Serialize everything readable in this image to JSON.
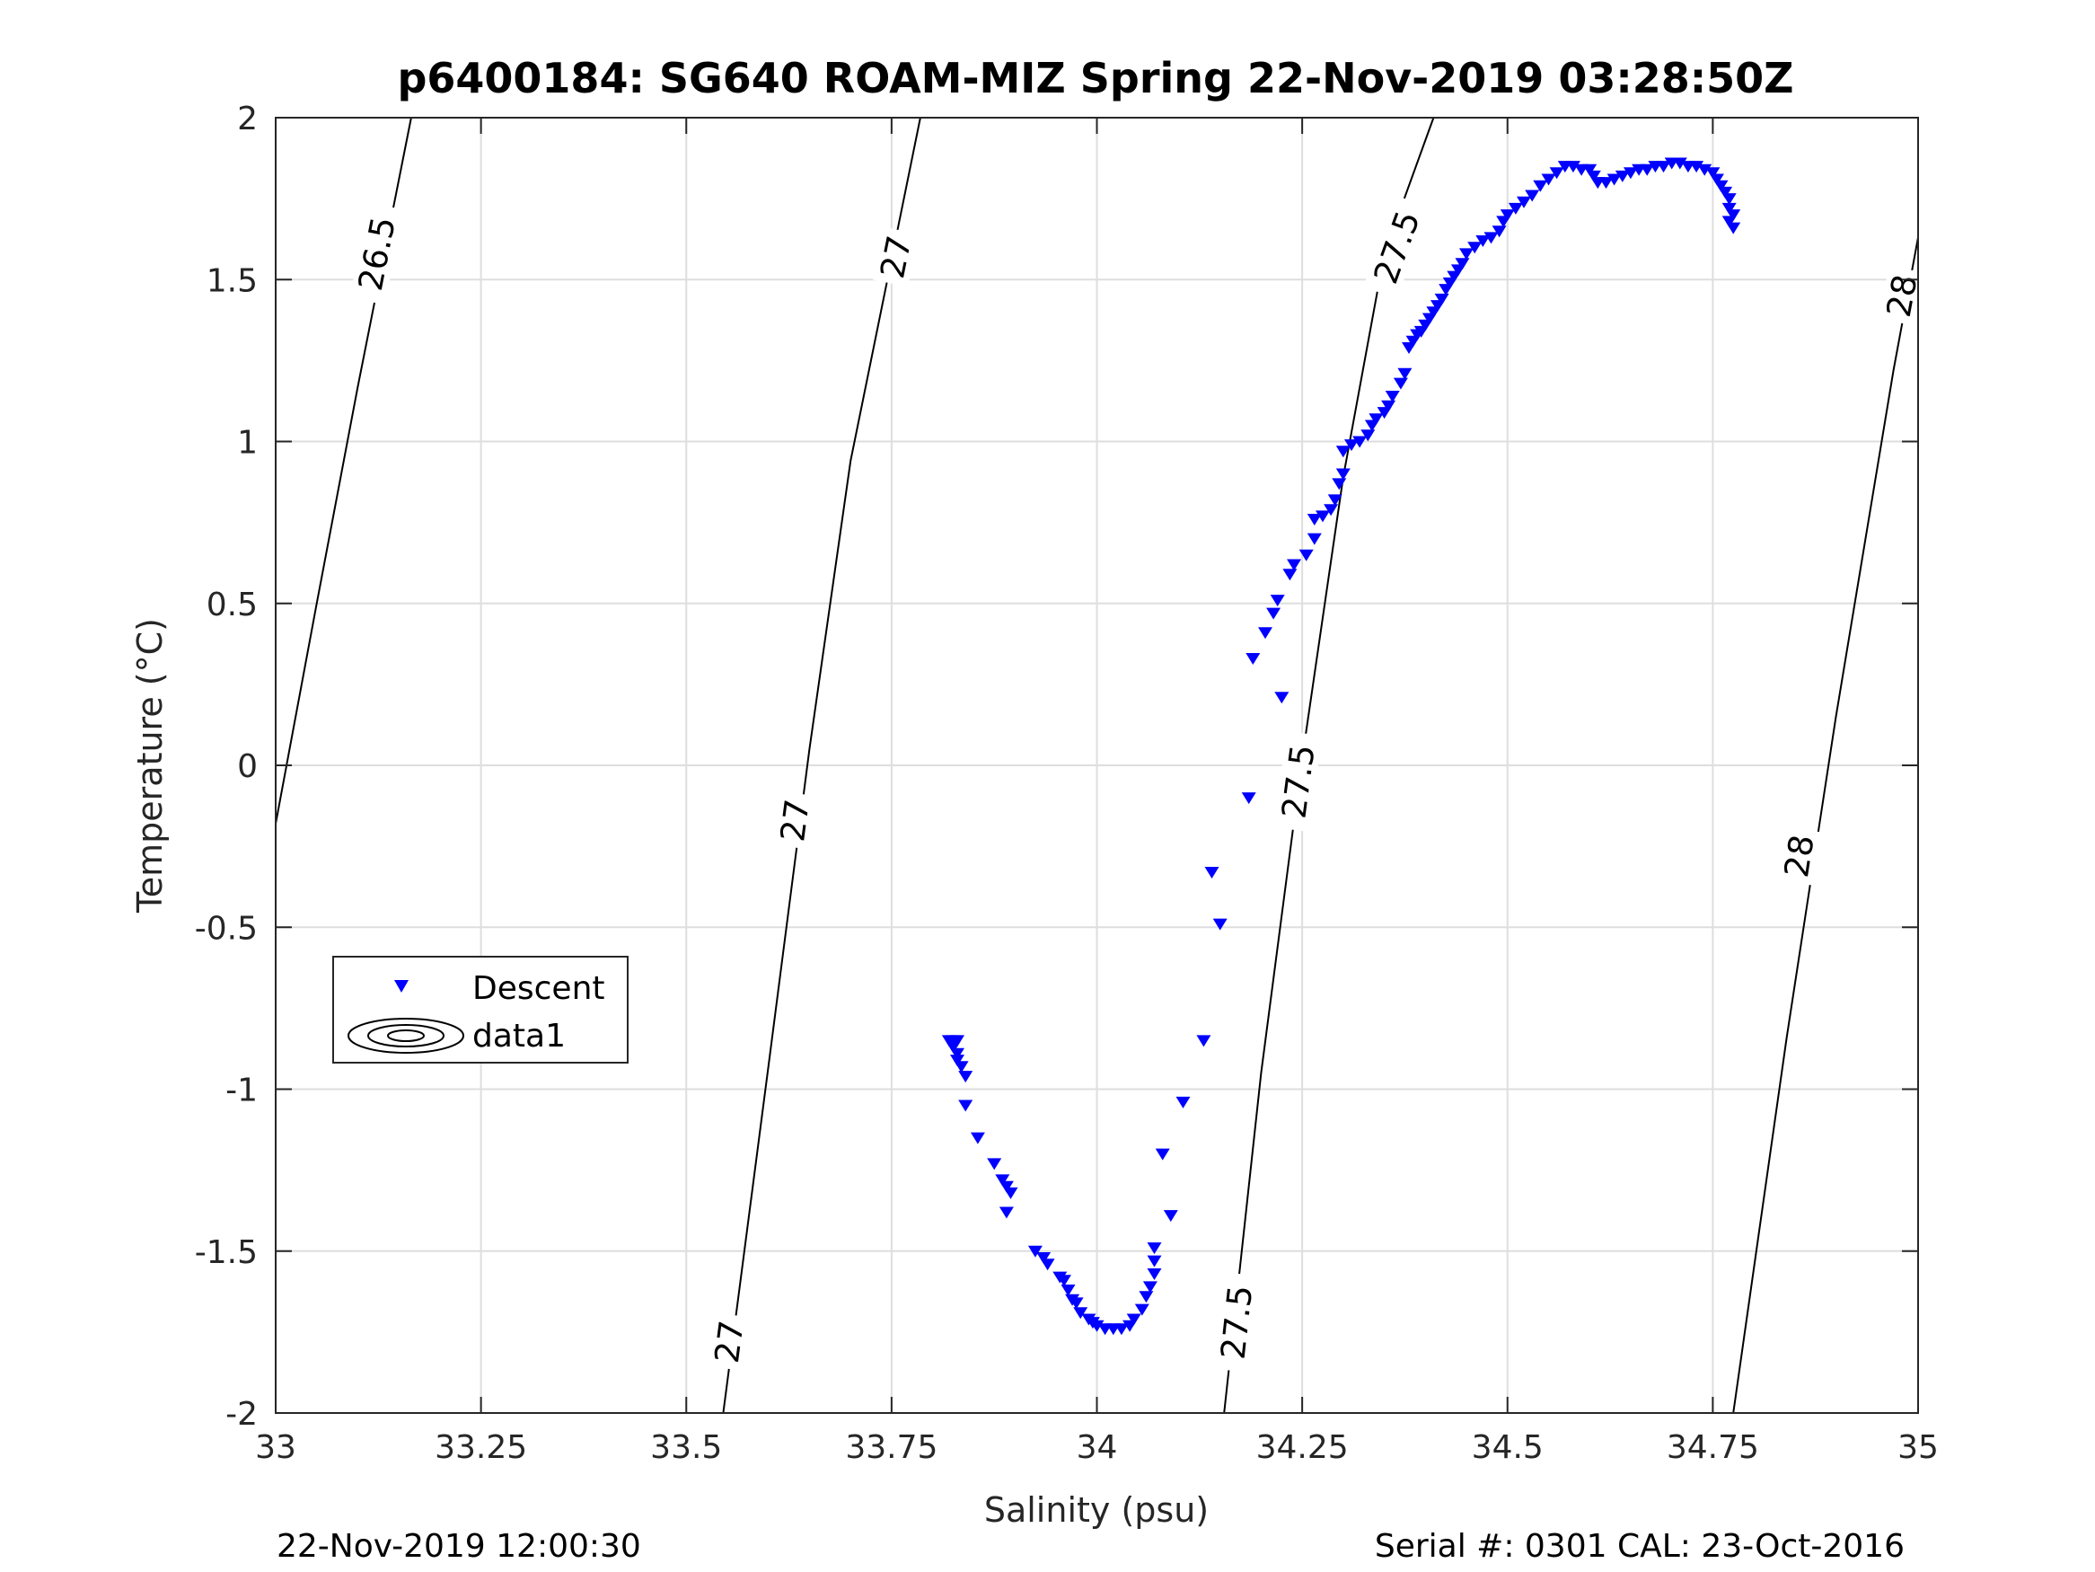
{
  "chart_data": {
    "type": "scatter",
    "title": "p6400184: SG640 ROAM-MIZ Spring 22-Nov-2019 03:28:50Z",
    "xlabel": "Salinity (psu)",
    "ylabel": "Temperature (°C)",
    "xlim": [
      33,
      35
    ],
    "ylim": [
      -2,
      2
    ],
    "xticks": [
      "33",
      "33.25",
      "33.5",
      "33.75",
      "34",
      "34.25",
      "34.5",
      "34.75",
      "35"
    ],
    "yticks": [
      "-2",
      "-1.5",
      "-1",
      "-0.5",
      "0",
      "0.5",
      "1",
      "1.5",
      "2"
    ],
    "grid": true,
    "legend_placement": "lower-left",
    "legend": [
      "Descent",
      "data1"
    ],
    "series": [
      {
        "name": "Descent",
        "marker": "triangle-down",
        "color": "#0000ff",
        "points": [
          [
            33.82,
            -0.85
          ],
          [
            33.825,
            -0.85
          ],
          [
            33.83,
            -0.85
          ],
          [
            33.825,
            -0.87
          ],
          [
            33.83,
            -0.89
          ],
          [
            33.83,
            -0.91
          ],
          [
            33.835,
            -0.93
          ],
          [
            33.84,
            -0.96
          ],
          [
            33.84,
            -1.05
          ],
          [
            33.855,
            -1.15
          ],
          [
            33.875,
            -1.23
          ],
          [
            33.885,
            -1.28
          ],
          [
            33.89,
            -1.3
          ],
          [
            33.895,
            -1.32
          ],
          [
            33.89,
            -1.38
          ],
          [
            33.925,
            -1.5
          ],
          [
            33.935,
            -1.52
          ],
          [
            33.94,
            -1.54
          ],
          [
            33.955,
            -1.58
          ],
          [
            33.96,
            -1.59
          ],
          [
            33.965,
            -1.62
          ],
          [
            33.97,
            -1.65
          ],
          [
            33.975,
            -1.66
          ],
          [
            33.98,
            -1.69
          ],
          [
            33.99,
            -1.71
          ],
          [
            33.995,
            -1.72
          ],
          [
            34.0,
            -1.73
          ],
          [
            34.01,
            -1.74
          ],
          [
            34.02,
            -1.74
          ],
          [
            34.03,
            -1.74
          ],
          [
            34.04,
            -1.73
          ],
          [
            34.045,
            -1.71
          ],
          [
            34.055,
            -1.68
          ],
          [
            34.06,
            -1.64
          ],
          [
            34.065,
            -1.61
          ],
          [
            34.07,
            -1.57
          ],
          [
            34.07,
            -1.53
          ],
          [
            34.07,
            -1.49
          ],
          [
            34.09,
            -1.39
          ],
          [
            34.08,
            -1.2
          ],
          [
            34.105,
            -1.04
          ],
          [
            34.13,
            -0.85
          ],
          [
            34.15,
            -0.49
          ],
          [
            34.14,
            -0.33
          ],
          [
            34.185,
            -0.1
          ],
          [
            34.19,
            0.33
          ],
          [
            34.205,
            0.41
          ],
          [
            34.215,
            0.47
          ],
          [
            34.22,
            0.51
          ],
          [
            34.225,
            0.21
          ],
          [
            34.235,
            0.59
          ],
          [
            34.24,
            0.62
          ],
          [
            34.255,
            0.65
          ],
          [
            34.265,
            0.7
          ],
          [
            34.265,
            0.76
          ],
          [
            34.275,
            0.77
          ],
          [
            34.285,
            0.79
          ],
          [
            34.29,
            0.82
          ],
          [
            34.295,
            0.87
          ],
          [
            34.3,
            0.9
          ],
          [
            34.3,
            0.97
          ],
          [
            34.31,
            0.99
          ],
          [
            34.32,
            1.0
          ],
          [
            34.33,
            1.02
          ],
          [
            34.335,
            1.05
          ],
          [
            34.34,
            1.07
          ],
          [
            34.35,
            1.09
          ],
          [
            34.355,
            1.11
          ],
          [
            34.36,
            1.14
          ],
          [
            34.37,
            1.18
          ],
          [
            34.375,
            1.21
          ],
          [
            34.38,
            1.29
          ],
          [
            34.385,
            1.31
          ],
          [
            34.39,
            1.33
          ],
          [
            34.395,
            1.34
          ],
          [
            34.4,
            1.36
          ],
          [
            34.405,
            1.38
          ],
          [
            34.41,
            1.4
          ],
          [
            34.415,
            1.42
          ],
          [
            34.42,
            1.44
          ],
          [
            34.425,
            1.47
          ],
          [
            34.43,
            1.49
          ],
          [
            34.435,
            1.51
          ],
          [
            34.44,
            1.53
          ],
          [
            34.445,
            1.55
          ],
          [
            34.45,
            1.58
          ],
          [
            34.46,
            1.6
          ],
          [
            34.47,
            1.62
          ],
          [
            34.48,
            1.63
          ],
          [
            34.49,
            1.65
          ],
          [
            34.495,
            1.68
          ],
          [
            34.5,
            1.7
          ],
          [
            34.51,
            1.72
          ],
          [
            34.52,
            1.74
          ],
          [
            34.53,
            1.76
          ],
          [
            34.54,
            1.79
          ],
          [
            34.55,
            1.81
          ],
          [
            34.56,
            1.83
          ],
          [
            34.57,
            1.85
          ],
          [
            34.58,
            1.85
          ],
          [
            34.59,
            1.84
          ],
          [
            34.6,
            1.84
          ],
          [
            34.605,
            1.82
          ],
          [
            34.61,
            1.8
          ],
          [
            34.62,
            1.8
          ],
          [
            34.63,
            1.81
          ],
          [
            34.64,
            1.82
          ],
          [
            34.65,
            1.83
          ],
          [
            34.66,
            1.84
          ],
          [
            34.67,
            1.84
          ],
          [
            34.68,
            1.85
          ],
          [
            34.69,
            1.85
          ],
          [
            34.7,
            1.86
          ],
          [
            34.71,
            1.86
          ],
          [
            34.72,
            1.85
          ],
          [
            34.73,
            1.85
          ],
          [
            34.74,
            1.84
          ],
          [
            34.75,
            1.83
          ],
          [
            34.755,
            1.81
          ],
          [
            34.76,
            1.79
          ],
          [
            34.765,
            1.77
          ],
          [
            34.77,
            1.75
          ],
          [
            34.77,
            1.72
          ],
          [
            34.775,
            1.7
          ],
          [
            34.77,
            1.68
          ],
          [
            34.775,
            1.66
          ]
        ]
      },
      {
        "name": "data1",
        "type": "contour",
        "description_free": true,
        "isopycnals": [
          {
            "level": "26.5",
            "points": [
              [
                33.0,
                -0.18
              ],
              [
                33.05,
                0.5
              ],
              [
                33.1,
                1.17
              ],
              [
                33.165,
                2.0
              ]
            ],
            "labels": [
              [
                33.123,
                1.58
              ]
            ]
          },
          {
            "level": "27",
            "points": [
              [
                33.545,
                -2.0
              ],
              [
                33.6,
                -0.93
              ],
              [
                33.65,
                0.05
              ],
              [
                33.7,
                0.94
              ],
              [
                33.785,
                2.0
              ]
            ],
            "labels": [
              [
                33.552,
                -1.78
              ],
              [
                33.632,
                -0.17
              ],
              [
                33.755,
                1.57
              ]
            ]
          },
          {
            "level": "27.5",
            "points": [
              [
                34.155,
                -2.0
              ],
              [
                34.2,
                -0.95
              ],
              [
                34.25,
                0.02
              ],
              [
                34.3,
                0.89
              ],
              [
                34.35,
                1.58
              ],
              [
                34.41,
                2.0
              ]
            ],
            "labels": [
              [
                34.17,
                -1.72
              ],
              [
                34.245,
                -0.05
              ],
              [
                34.365,
                1.6
              ]
            ]
          },
          {
            "level": "28",
            "points": [
              [
                34.775,
                -2.0
              ],
              [
                34.84,
                -0.84
              ],
              [
                34.9,
                0.15
              ],
              [
                34.97,
                1.22
              ],
              [
                35.0,
                1.63
              ]
            ],
            "labels": [
              [
                34.855,
                -0.28
              ],
              [
                34.98,
                1.45
              ]
            ]
          }
        ]
      }
    ],
    "footer_left": "22-Nov-2019 12:00:30",
    "footer_right": "Serial #: 0301  CAL: 23-Oct-2016"
  }
}
